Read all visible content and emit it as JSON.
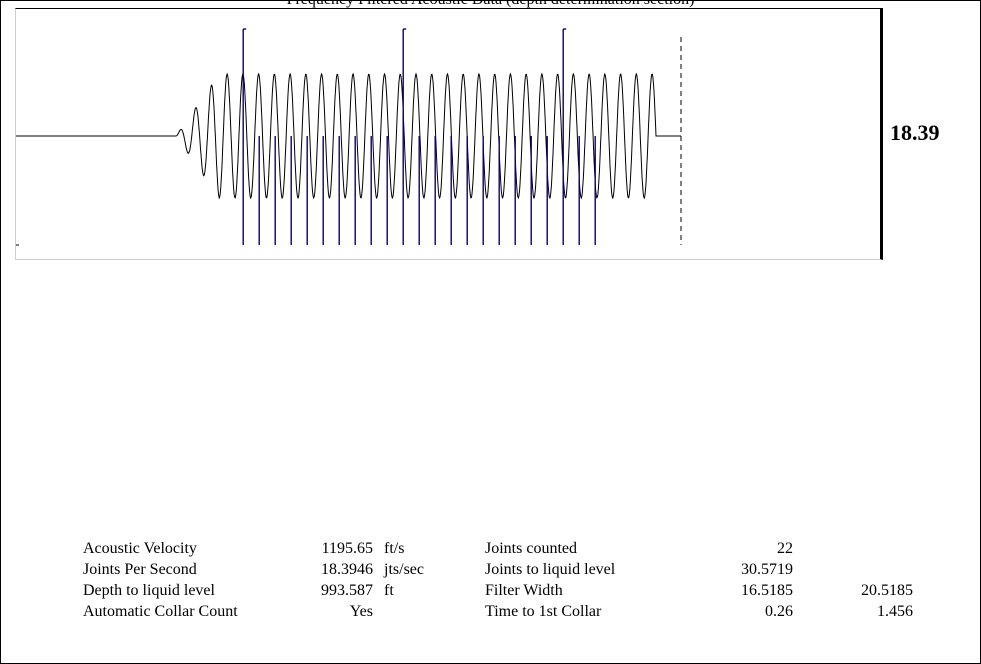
{
  "top_caption": "Frequency Filtered Acoustic Data (depth determination section)",
  "readout": "18.39",
  "chart_data": {
    "type": "line",
    "title": "",
    "xlabel": "",
    "ylabel": "",
    "signal": {
      "onset_time": 0.05,
      "end_time": 1.55,
      "cycles": 30.5,
      "color": "#000000"
    },
    "collar_markers": {
      "color": "#00008b",
      "times": [
        0.26,
        0.31,
        0.36,
        0.41,
        0.46,
        0.51,
        0.56,
        0.61,
        0.66,
        0.71,
        0.76,
        0.81,
        0.86,
        0.91,
        0.96,
        1.01,
        1.06,
        1.11,
        1.16,
        1.21,
        1.26,
        1.31,
        1.36
      ],
      "major_times": [
        0.26,
        0.76,
        1.26
      ]
    },
    "liquid_level_time": 1.55
  },
  "summary": {
    "rows": [
      {
        "label1": "Acoustic Velocity",
        "val1": "1195.65",
        "unit1": "ft/s",
        "label2": "Joints counted",
        "val2": "22",
        "val3": ""
      },
      {
        "label1": "Joints Per Second",
        "val1": "18.3946",
        "unit1": "jts/sec",
        "label2": "Joints to liquid level",
        "val2": "30.5719",
        "val3": ""
      },
      {
        "label1": "Depth to liquid level",
        "val1": "993.587",
        "unit1": "ft",
        "label2": "Filter Width",
        "val2": "16.5185",
        "val3": "20.5185"
      },
      {
        "label1": "Automatic Collar Count",
        "val1": "Yes",
        "unit1": "",
        "label2": "Time to 1st Collar",
        "val2": "0.26",
        "val3": "1.456"
      }
    ]
  }
}
